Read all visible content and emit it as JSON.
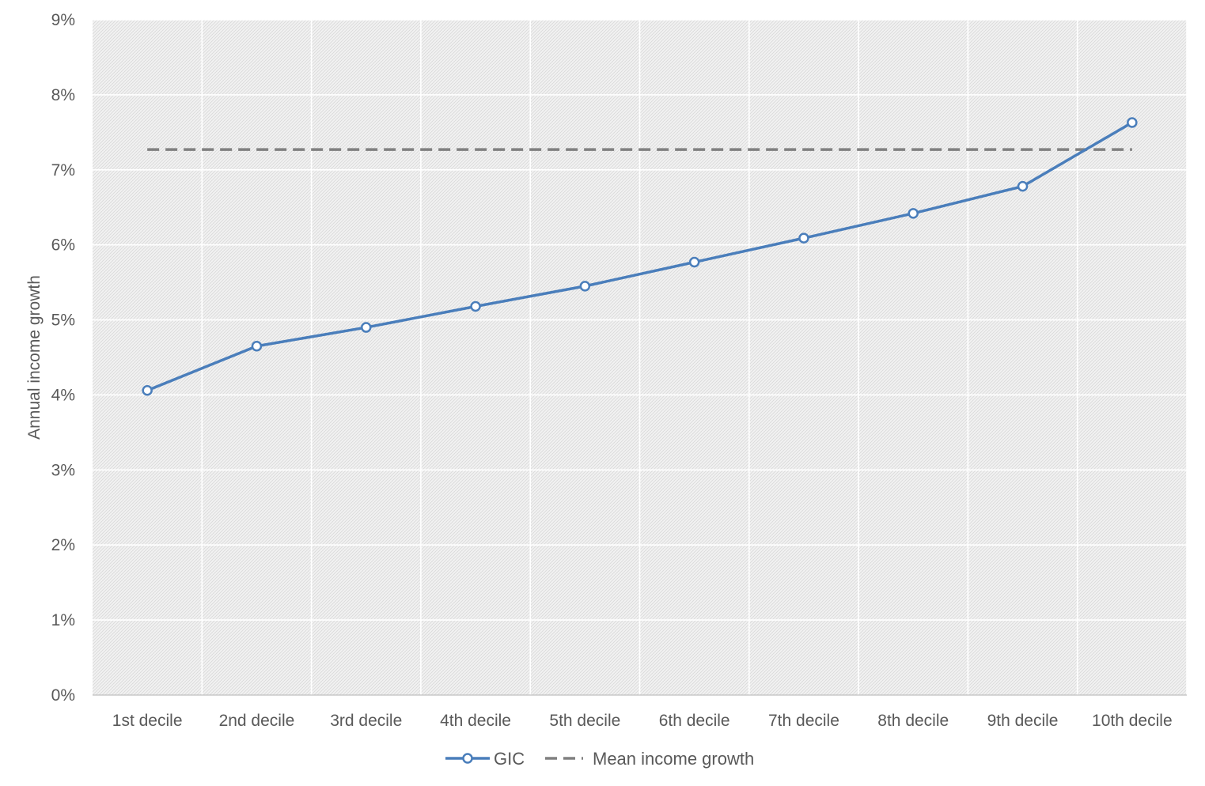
{
  "chart_data": {
    "type": "line",
    "title": "",
    "xlabel": "",
    "ylabel": "Annual income growth",
    "categories": [
      "1st decile",
      "2nd decile",
      "3rd decile",
      "4th decile",
      "5th decile",
      "6th decile",
      "7th decile",
      "8th decile",
      "9th decile",
      "10th decile"
    ],
    "ylim": [
      0,
      9
    ],
    "yticks": [
      "0%",
      "1%",
      "2%",
      "3%",
      "4%",
      "5%",
      "6%",
      "7%",
      "8%",
      "9%"
    ],
    "grid": true,
    "legend_position": "bottom",
    "series": [
      {
        "name": "GIC",
        "style": "solid-with-circle-markers",
        "color": "#4a7ebb",
        "values": [
          4.06,
          4.65,
          4.9,
          5.18,
          5.45,
          5.77,
          6.09,
          6.42,
          6.78,
          7.63
        ]
      },
      {
        "name": "Mean income growth",
        "style": "dashed",
        "color": "#808080",
        "values": [
          7.27,
          7.27,
          7.27,
          7.27,
          7.27,
          7.27,
          7.27,
          7.27,
          7.27,
          7.27
        ]
      }
    ]
  }
}
